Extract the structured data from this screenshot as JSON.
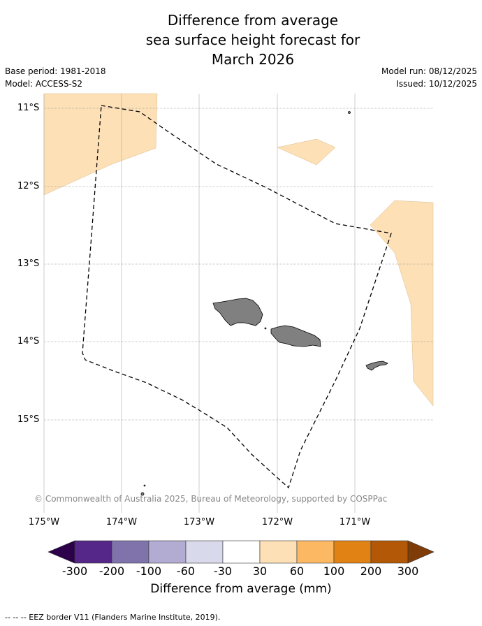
{
  "title": {
    "line1": "Difference from average",
    "line2": "sea surface height forecast for",
    "line3": "March 2026"
  },
  "meta": {
    "base_period": "Base period: 1981-2018",
    "model": "Model: ACCESS-S2",
    "model_run": "Model run: 08/12/2025",
    "issued": "Issued: 10/12/2025"
  },
  "map": {
    "lat_labels": [
      "11°S",
      "12°S",
      "13°S",
      "14°S",
      "15°S"
    ],
    "lon_labels": [
      "175°W",
      "174°W",
      "173°W",
      "172°W",
      "171°W"
    ],
    "copyright": "© Commonwealth of Australia 2025, Bureau of Meteorology, supported by COSPPac",
    "anomaly_color": "#fde0b6",
    "land_color": "#808080",
    "eez_color": "#000000"
  },
  "colorbar": {
    "ticks": [
      "-300",
      "-200",
      "-100",
      "-60",
      "-30",
      "30",
      "60",
      "100",
      "200",
      "300"
    ],
    "colors": [
      "#2d004b",
      "#542788",
      "#8073ac",
      "#b2abd2",
      "#d8daeb",
      "#ffffff",
      "#fee0b6",
      "#fdb863",
      "#e08214",
      "#b35806",
      "#7f3b08"
    ],
    "label": "Difference from average (mm)"
  },
  "footer": "--  --  -- EEZ border V11 (Flanders Marine Institute, 2019)."
}
